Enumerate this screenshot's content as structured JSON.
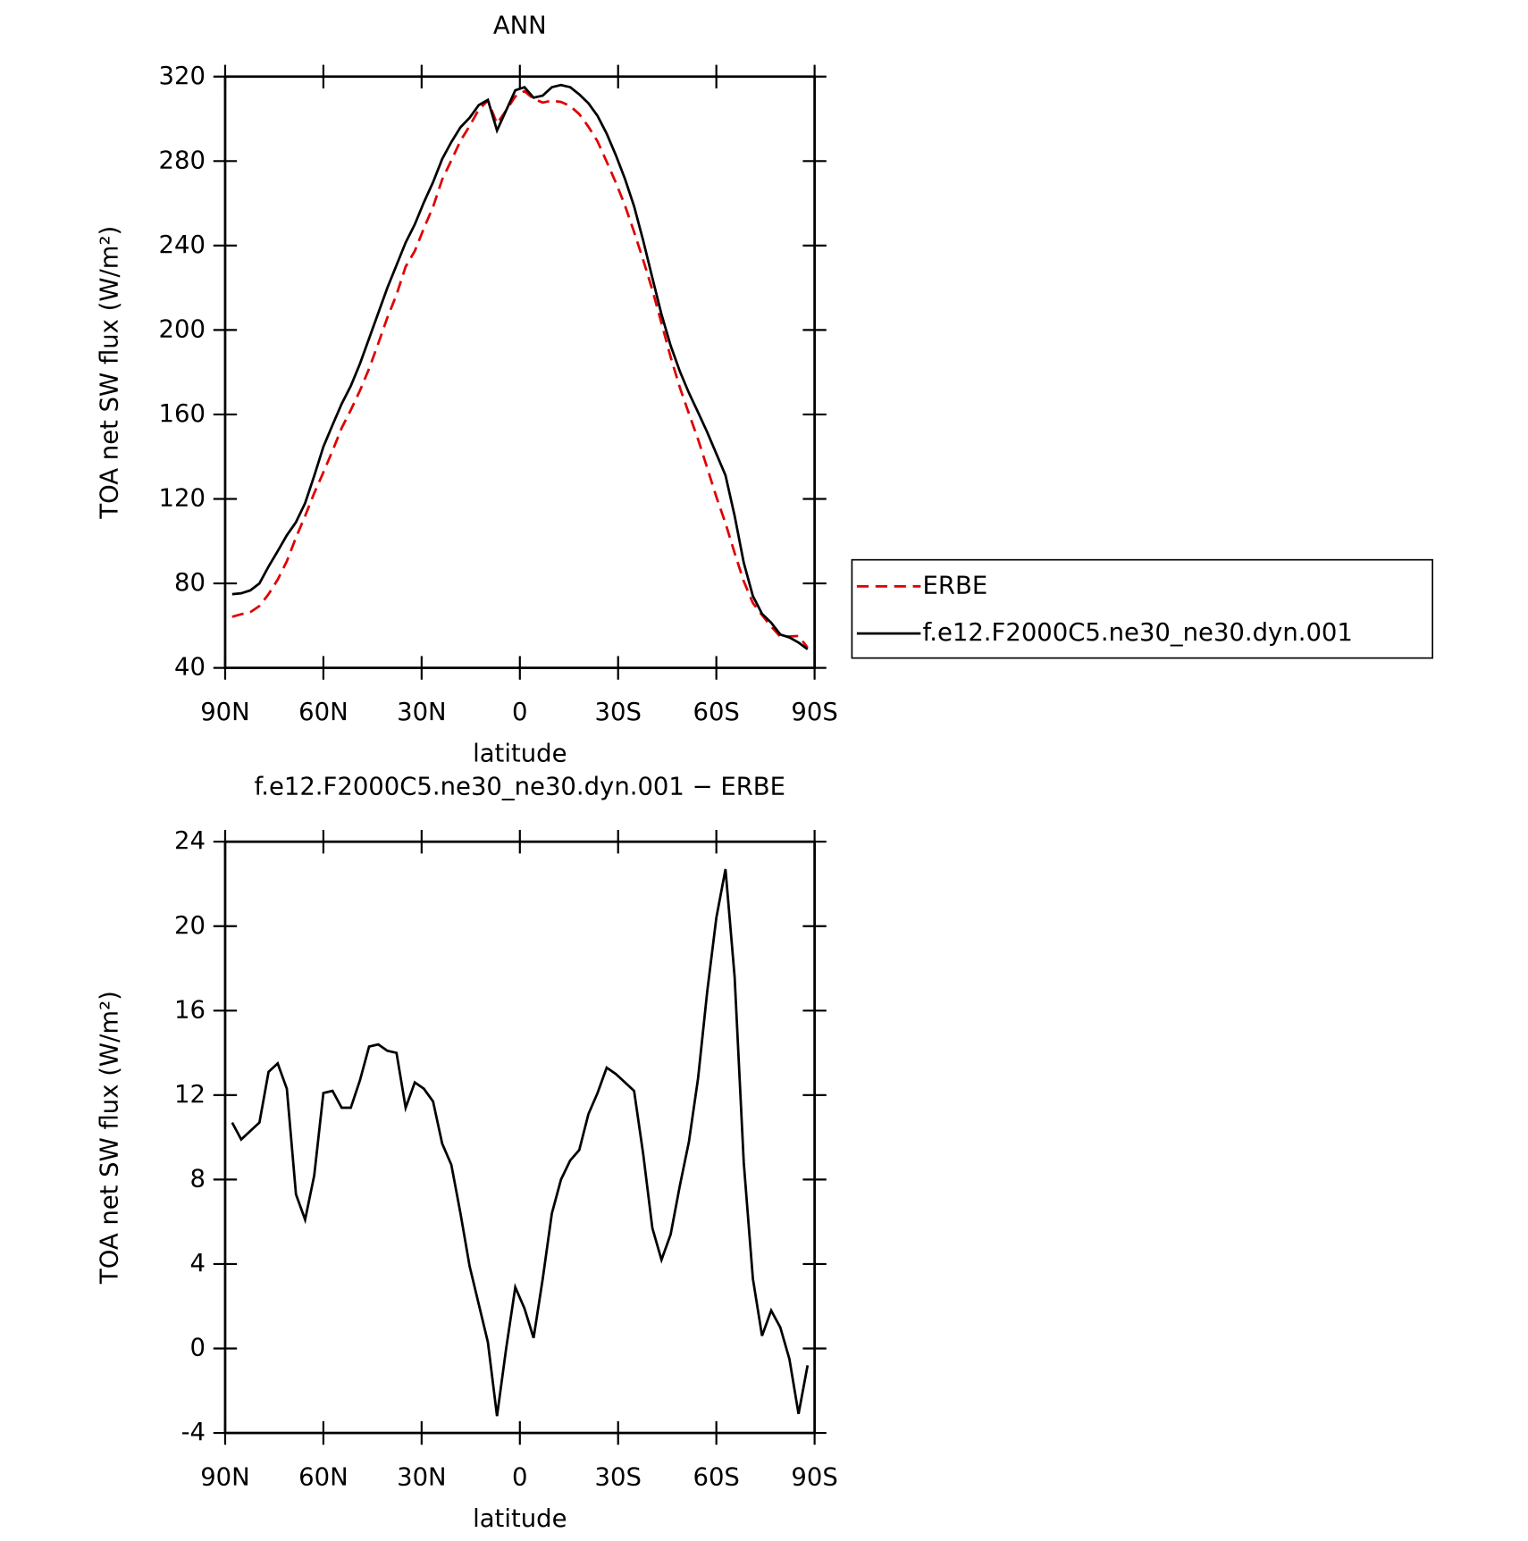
{
  "chart_data": [
    {
      "type": "line",
      "title": "ANN",
      "xlabel": "latitude",
      "ylabel": "TOA net SW flux (W/m²)",
      "x": [
        87.86,
        85.1,
        82.31,
        79.53,
        76.74,
        73.95,
        71.16,
        68.37,
        65.58,
        62.79,
        60.0,
        57.21,
        54.42,
        51.63,
        48.84,
        46.04,
        43.25,
        40.46,
        37.67,
        34.88,
        32.09,
        29.3,
        26.51,
        23.72,
        20.93,
        18.14,
        15.35,
        12.56,
        9.77,
        6.98,
        4.19,
        1.4,
        -1.4,
        -4.19,
        -6.98,
        -9.77,
        -12.56,
        -15.35,
        -18.14,
        -20.93,
        -23.72,
        -26.51,
        -29.3,
        -32.09,
        -34.88,
        -37.67,
        -40.46,
        -43.25,
        -46.04,
        -48.84,
        -51.63,
        -54.42,
        -57.21,
        -60.0,
        -62.79,
        -65.58,
        -68.37,
        -71.16,
        -73.95,
        -76.74,
        -79.53,
        -82.31,
        -85.1,
        -87.86
      ],
      "series": [
        {
          "name": "ERBE",
          "color": "#e00000",
          "dashed": true,
          "values": [
            64.2,
            65.4,
            66.4,
            69.3,
            74.9,
            81.8,
            90.5,
            101.7,
            111.9,
            122.8,
            132.6,
            142.8,
            153.6,
            162.1,
            171.3,
            181.7,
            193.6,
            205.9,
            216.7,
            230,
            237.4,
            248.2,
            258.3,
            271.3,
            280.3,
            289.6,
            296.6,
            304.4,
            308.7,
            297.7,
            304,
            310.6,
            313.1,
            309.5,
            307.7,
            308.6,
            308,
            306.1,
            302.2,
            296.3,
            289.3,
            279.7,
            269.8,
            259,
            246.4,
            233.1,
            219,
            203.2,
            187.2,
            172.8,
            160.4,
            148.2,
            134.7,
            121,
            108.5,
            94.4,
            81,
            70.7,
            65,
            59.6,
            54.8,
            54.9,
            55.1,
            49.6
          ]
        },
        {
          "name": "f.e12.F2000C5.ne30_ne30.dyn.001",
          "color": "#000000",
          "dashed": false,
          "values": [
            74.9,
            75.3,
            76.7,
            80,
            88,
            95.3,
            102.8,
            109,
            118,
            131,
            144.7,
            155,
            165,
            173.5,
            184,
            196,
            208,
            220,
            230.7,
            241.4,
            250,
            260.5,
            270,
            281,
            289,
            296,
            300.5,
            306.5,
            309,
            294.5,
            304,
            313.5,
            315,
            310,
            311,
            315,
            316,
            315,
            311.6,
            307.4,
            301.4,
            293,
            282.8,
            271.6,
            258.6,
            242.3,
            224.7,
            207.4,
            192.6,
            180.5,
            170.2,
            161,
            151.6,
            141.4,
            131.2,
            112,
            89.8,
            74,
            65.6,
            61.4,
            55.8,
            54.4,
            52,
            48.8
          ]
        }
      ],
      "xlim": [
        90,
        -90
      ],
      "xticks": [
        {
          "value": 90,
          "label": "90N"
        },
        {
          "value": 60,
          "label": "60N"
        },
        {
          "value": 30,
          "label": "30N"
        },
        0,
        {
          "value": -30,
          "label": "30S"
        },
        {
          "value": -60,
          "label": "60S"
        },
        {
          "value": -90,
          "label": "90S"
        }
      ],
      "ylim": [
        40,
        320
      ],
      "yticks": [
        40,
        80,
        120,
        160,
        200,
        240,
        280,
        320
      ],
      "legend": "right"
    },
    {
      "type": "line",
      "title": "f.e12.F2000C5.ne30_ne30.dyn.001 − ERBE",
      "xlabel": "latitude",
      "ylabel": "TOA net SW flux (W/m²)",
      "x": [
        87.86,
        85.1,
        82.31,
        79.53,
        76.74,
        73.95,
        71.16,
        68.37,
        65.58,
        62.79,
        60.0,
        57.21,
        54.42,
        51.63,
        48.84,
        46.04,
        43.25,
        40.46,
        37.67,
        34.88,
        32.09,
        29.3,
        26.51,
        23.72,
        20.93,
        18.14,
        15.35,
        12.56,
        9.77,
        6.98,
        4.19,
        1.4,
        -1.4,
        -4.19,
        -6.98,
        -9.77,
        -12.56,
        -15.35,
        -18.14,
        -20.93,
        -23.72,
        -26.51,
        -29.3,
        -32.09,
        -34.88,
        -37.67,
        -40.46,
        -43.25,
        -46.04,
        -48.84,
        -51.63,
        -54.42,
        -57.21,
        -60.0,
        -62.79,
        -65.58,
        -68.37,
        -71.16,
        -73.95,
        -76.74,
        -79.53,
        -82.31,
        -85.1,
        -87.86
      ],
      "values": [
        10.7,
        9.9,
        10.3,
        10.7,
        13.1,
        13.5,
        12.3,
        7.3,
        6.1,
        8.2,
        12.1,
        12.2,
        11.4,
        11.4,
        12.7,
        14.3,
        14.4,
        14.1,
        14.0,
        11.4,
        12.6,
        12.3,
        11.7,
        9.7,
        8.7,
        6.4,
        3.9,
        2.1,
        0.3,
        -3.2,
        0,
        2.9,
        1.9,
        0.5,
        3.3,
        6.4,
        8.0,
        8.9,
        9.4,
        11.1,
        12.1,
        13.3,
        13.0,
        12.6,
        12.2,
        9.2,
        5.7,
        4.2,
        5.4,
        7.7,
        9.8,
        12.8,
        16.9,
        20.4,
        22.7,
        17.6,
        8.8,
        3.3,
        0.6,
        1.8,
        1.0,
        -0.5,
        -3.1,
        -0.8
      ],
      "color": "#000000",
      "xlim": [
        90,
        -90
      ],
      "xticks": [
        {
          "value": 90,
          "label": "90N"
        },
        {
          "value": 60,
          "label": "60N"
        },
        {
          "value": 30,
          "label": "30N"
        },
        0,
        {
          "value": -30,
          "label": "30S"
        },
        {
          "value": -60,
          "label": "60S"
        },
        {
          "value": -90,
          "label": "90S"
        }
      ],
      "ylim": [
        -4,
        24
      ],
      "yticks": [
        -4,
        0,
        4,
        8,
        12,
        16,
        20,
        24
      ]
    }
  ]
}
